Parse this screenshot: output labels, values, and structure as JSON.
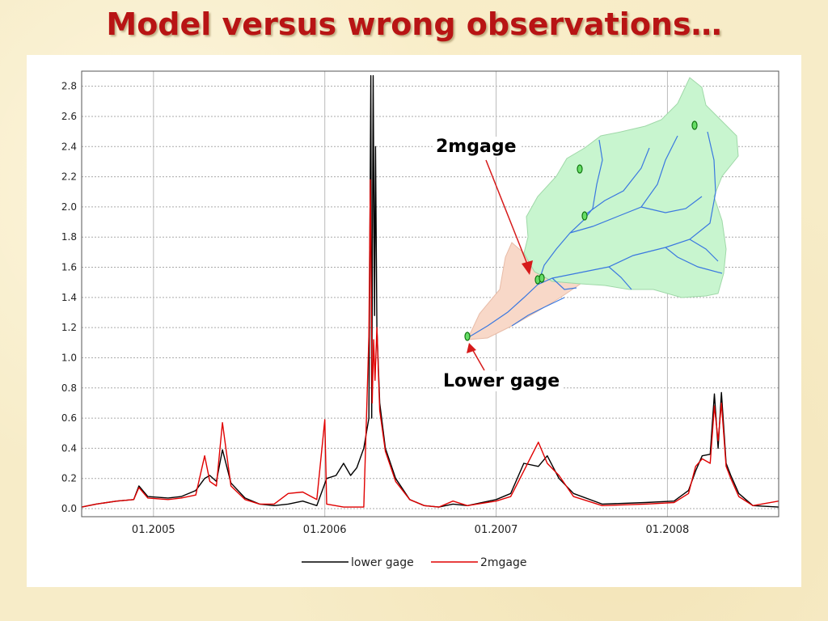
{
  "slide": {
    "title": "Model versus wrong observations…"
  },
  "colors": {
    "title": "#b81414",
    "lower_gage": "#000000",
    "mgage": "#e00000",
    "catchment_upper": "#c8f5cf",
    "catchment_lower": "#f8d8c8",
    "stream": "#3a78e0"
  },
  "map": {
    "labels": {
      "upper": "2mgage",
      "lower": "Lower gage"
    },
    "icons": [
      "catchment-map-icon",
      "gage-marker-icon"
    ]
  },
  "chart_data": {
    "type": "line",
    "title": "",
    "xlabel": "",
    "ylabel": "",
    "xlim": [
      "2004-08-01",
      "2008-08-25"
    ],
    "ylim": [
      0.0,
      2.9
    ],
    "yticks": [
      "0.0",
      "0.2",
      "0.4",
      "0.6",
      "0.8",
      "1.0",
      "1.2",
      "1.4",
      "1.6",
      "1.8",
      "2.0",
      "2.2",
      "2.4",
      "2.6",
      "2.8"
    ],
    "xticks": [
      {
        "date": "2005-01-01",
        "label": "01.2005"
      },
      {
        "date": "2006-01-01",
        "label": "01.2006"
      },
      {
        "date": "2007-01-01",
        "label": "01.2007"
      },
      {
        "date": "2008-01-01",
        "label": "01.2008"
      }
    ],
    "grid": true,
    "legend_position": "bottom",
    "series": [
      {
        "name": "lower gage",
        "points": [
          [
            "2004-08-01",
            0.01
          ],
          [
            "2004-09-01",
            0.03
          ],
          [
            "2004-10-15",
            0.05
          ],
          [
            "2004-11-20",
            0.06
          ],
          [
            "2004-12-01",
            0.15
          ],
          [
            "2004-12-20",
            0.08
          ],
          [
            "2005-02-01",
            0.07
          ],
          [
            "2005-03-01",
            0.08
          ],
          [
            "2005-04-01",
            0.12
          ],
          [
            "2005-04-20",
            0.2
          ],
          [
            "2005-05-01",
            0.22
          ],
          [
            "2005-05-15",
            0.18
          ],
          [
            "2005-05-28",
            0.39
          ],
          [
            "2005-06-15",
            0.17
          ],
          [
            "2005-07-15",
            0.07
          ],
          [
            "2005-08-15",
            0.03
          ],
          [
            "2005-09-15",
            0.02
          ],
          [
            "2005-10-15",
            0.03
          ],
          [
            "2005-11-15",
            0.05
          ],
          [
            "2005-12-15",
            0.02
          ],
          [
            "2006-01-05",
            0.2
          ],
          [
            "2006-01-25",
            0.22
          ],
          [
            "2006-02-10",
            0.3
          ],
          [
            "2006-02-25",
            0.22
          ],
          [
            "2006-03-10",
            0.27
          ],
          [
            "2006-03-25",
            0.4
          ],
          [
            "2006-04-05",
            0.6
          ],
          [
            "2006-04-09",
            2.87
          ],
          [
            "2006-04-11",
            0.6
          ],
          [
            "2006-04-14",
            2.87
          ],
          [
            "2006-04-17",
            1.28
          ],
          [
            "2006-04-19",
            2.4
          ],
          [
            "2006-04-22",
            1.2
          ],
          [
            "2006-04-28",
            0.7
          ],
          [
            "2006-05-10",
            0.4
          ],
          [
            "2006-06-01",
            0.2
          ],
          [
            "2006-07-01",
            0.06
          ],
          [
            "2006-08-01",
            0.02
          ],
          [
            "2006-09-01",
            0.01
          ],
          [
            "2006-10-01",
            0.03
          ],
          [
            "2006-11-01",
            0.02
          ],
          [
            "2007-01-01",
            0.06
          ],
          [
            "2007-02-01",
            0.1
          ],
          [
            "2007-03-01",
            0.3
          ],
          [
            "2007-04-01",
            0.28
          ],
          [
            "2007-04-20",
            0.35
          ],
          [
            "2007-05-15",
            0.2
          ],
          [
            "2007-06-15",
            0.1
          ],
          [
            "2007-08-15",
            0.03
          ],
          [
            "2007-11-15",
            0.04
          ],
          [
            "2008-01-15",
            0.05
          ],
          [
            "2008-02-15",
            0.12
          ],
          [
            "2008-03-01",
            0.25
          ],
          [
            "2008-03-15",
            0.35
          ],
          [
            "2008-04-01",
            0.36
          ],
          [
            "2008-04-10",
            0.76
          ],
          [
            "2008-04-18",
            0.4
          ],
          [
            "2008-04-25",
            0.77
          ],
          [
            "2008-05-05",
            0.3
          ],
          [
            "2008-05-15",
            0.22
          ],
          [
            "2008-06-01",
            0.1
          ],
          [
            "2008-07-01",
            0.02
          ],
          [
            "2008-08-25",
            0.01
          ]
        ]
      },
      {
        "name": "2mgage",
        "points": [
          [
            "2004-08-01",
            0.01
          ],
          [
            "2004-09-01",
            0.03
          ],
          [
            "2004-10-15",
            0.05
          ],
          [
            "2004-11-20",
            0.06
          ],
          [
            "2004-12-01",
            0.14
          ],
          [
            "2004-12-20",
            0.07
          ],
          [
            "2005-02-01",
            0.06
          ],
          [
            "2005-03-01",
            0.07
          ],
          [
            "2005-04-01",
            0.09
          ],
          [
            "2005-04-20",
            0.35
          ],
          [
            "2005-05-01",
            0.18
          ],
          [
            "2005-05-15",
            0.15
          ],
          [
            "2005-05-28",
            0.57
          ],
          [
            "2005-06-15",
            0.15
          ],
          [
            "2005-07-15",
            0.06
          ],
          [
            "2005-08-15",
            0.03
          ],
          [
            "2005-09-15",
            0.03
          ],
          [
            "2005-10-15",
            0.1
          ],
          [
            "2005-11-15",
            0.11
          ],
          [
            "2005-12-15",
            0.06
          ],
          [
            "2006-01-01",
            0.59
          ],
          [
            "2006-01-05",
            0.03
          ],
          [
            "2006-02-10",
            0.01
          ],
          [
            "2006-03-25",
            0.01
          ],
          [
            "2006-04-05",
            1.14
          ],
          [
            "2006-04-08",
            2.18
          ],
          [
            "2006-04-12",
            0.7
          ],
          [
            "2006-04-15",
            1.12
          ],
          [
            "2006-04-18",
            0.85
          ],
          [
            "2006-04-22",
            1.2
          ],
          [
            "2006-04-28",
            0.65
          ],
          [
            "2006-05-10",
            0.38
          ],
          [
            "2006-06-01",
            0.18
          ],
          [
            "2006-07-01",
            0.06
          ],
          [
            "2006-08-01",
            0.02
          ],
          [
            "2006-09-01",
            0.01
          ],
          [
            "2006-10-01",
            0.05
          ],
          [
            "2006-11-01",
            0.02
          ],
          [
            "2007-01-01",
            0.05
          ],
          [
            "2007-02-01",
            0.08
          ],
          [
            "2007-03-01",
            0.25
          ],
          [
            "2007-04-01",
            0.44
          ],
          [
            "2007-04-20",
            0.3
          ],
          [
            "2007-05-15",
            0.22
          ],
          [
            "2007-06-15",
            0.08
          ],
          [
            "2007-08-15",
            0.02
          ],
          [
            "2007-11-15",
            0.03
          ],
          [
            "2008-01-15",
            0.04
          ],
          [
            "2008-02-15",
            0.1
          ],
          [
            "2008-03-01",
            0.28
          ],
          [
            "2008-03-15",
            0.33
          ],
          [
            "2008-04-01",
            0.3
          ],
          [
            "2008-04-10",
            0.68
          ],
          [
            "2008-04-18",
            0.45
          ],
          [
            "2008-04-25",
            0.7
          ],
          [
            "2008-05-05",
            0.28
          ],
          [
            "2008-05-15",
            0.2
          ],
          [
            "2008-06-01",
            0.08
          ],
          [
            "2008-07-01",
            0.02
          ],
          [
            "2008-08-25",
            0.05
          ]
        ]
      }
    ]
  }
}
